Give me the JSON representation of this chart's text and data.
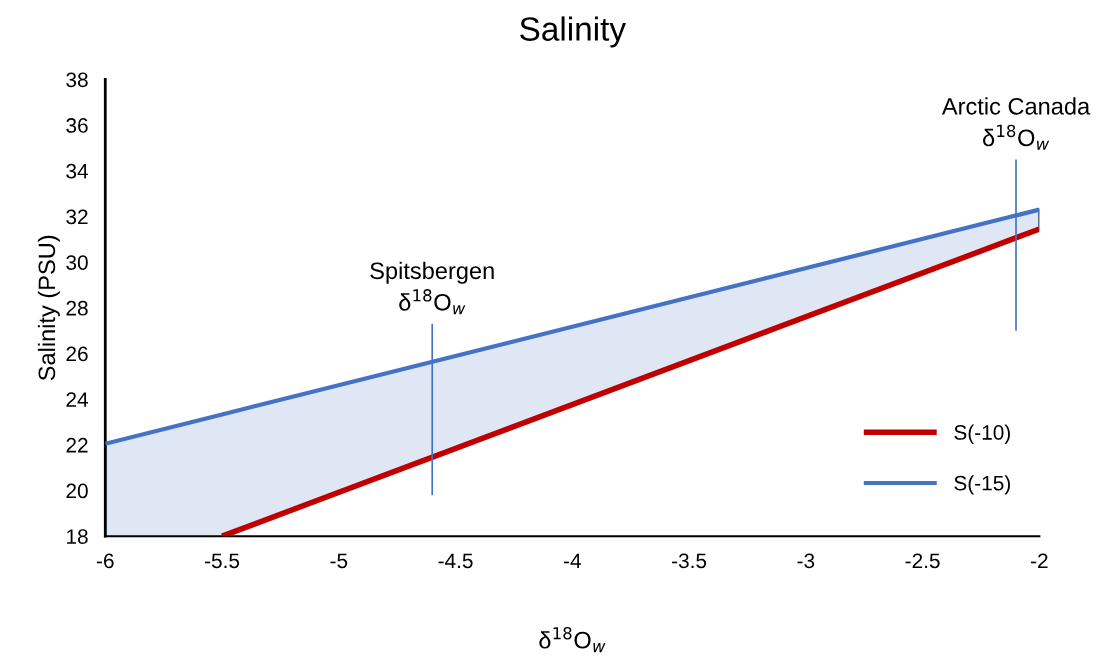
{
  "chart_data": {
    "type": "line",
    "title": "Salinity",
    "xlabel": "δ$^{18}$O$_{w}$",
    "ylabel": "Salinity (PSU)",
    "xlim": [
      -6,
      -2
    ],
    "xticks": [
      -6,
      -5.5,
      -5,
      -4.5,
      -4,
      -3.5,
      -3,
      -2.5,
      -2
    ],
    "ylim": [
      18,
      38
    ],
    "yticks": [
      18,
      20,
      22,
      24,
      26,
      28,
      30,
      32,
      34,
      36,
      38
    ],
    "grid": false,
    "legend": "bottom right",
    "marker": "none",
    "line_style": "solid",
    "series": [
      {
        "name": "S(-10)",
        "color": "#c00000",
        "x": [
          -5.5,
          -2
        ],
        "values": [
          18,
          31.45
        ]
      },
      {
        "name": "S(-15)",
        "color": "#4472c4",
        "x": [
          -6,
          -5.5,
          -2
        ],
        "values": [
          22.05,
          23.33,
          32.3
        ],
        "lower": [
          18,
          18,
          31.45
        ],
        "upper": [
          22.05,
          23.33,
          32.3
        ]
      },
      {
        "color": "#4472c4",
        "x": [
          -4.6,
          -4.6
        ],
        "values": [
          19.8,
          27.3
        ]
      },
      {
        "color": "#4472c4",
        "x": [
          -2.1,
          -2.1
        ],
        "values": [
          27,
          34.5
        ]
      }
    ],
    "annotations": [
      {
        "text": "Spitsbergen\nδ$^{18}$O$_{w}$",
        "x": -4.6,
        "y": 27.3
      },
      {
        "text": "Arctic Canada\nδ$^{18}$O$_{w}$",
        "x": -2.1,
        "y": 34.5
      }
    ]
  }
}
